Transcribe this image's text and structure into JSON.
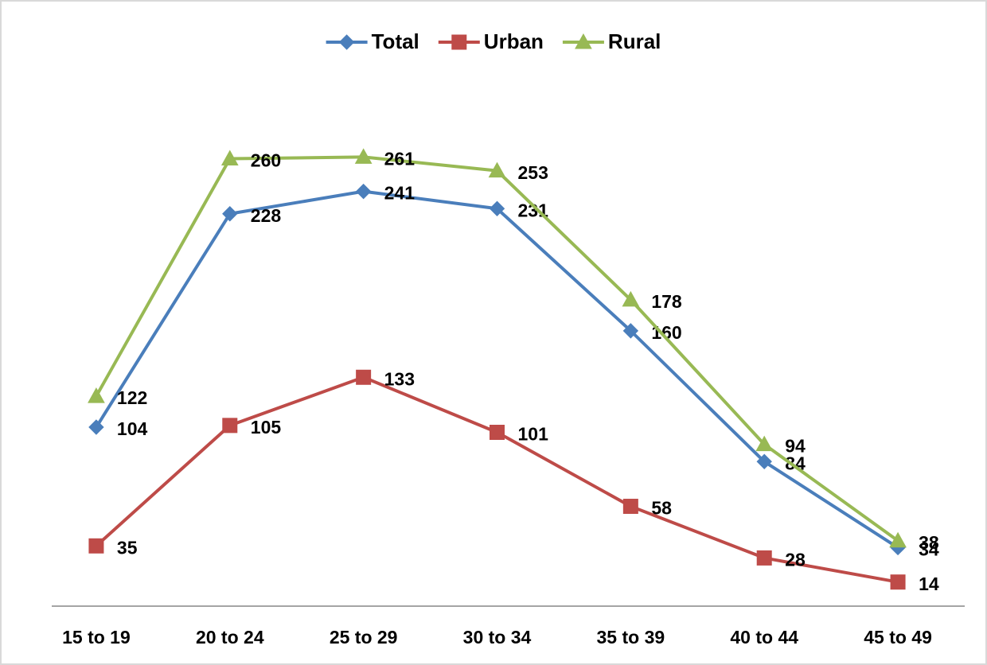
{
  "chart_data": {
    "type": "line",
    "categories": [
      "15 to 19",
      "20 to 24",
      "25 to 29",
      "30 to 34",
      "35 to 39",
      "40 to 44",
      "45 to 49"
    ],
    "series": [
      {
        "name": "Total",
        "color": "#4a7ebb",
        "marker": "diamond",
        "values": [
          104,
          228,
          241,
          231,
          160,
          84,
          34
        ]
      },
      {
        "name": "Urban",
        "color": "#be4b48",
        "marker": "square",
        "values": [
          35,
          105,
          133,
          101,
          58,
          28,
          14
        ]
      },
      {
        "name": "Rural",
        "color": "#98b954",
        "marker": "triangle",
        "values": [
          122,
          260,
          261,
          253,
          178,
          94,
          38
        ]
      }
    ],
    "ylim": [
      0,
      300
    ],
    "legend": "top"
  }
}
